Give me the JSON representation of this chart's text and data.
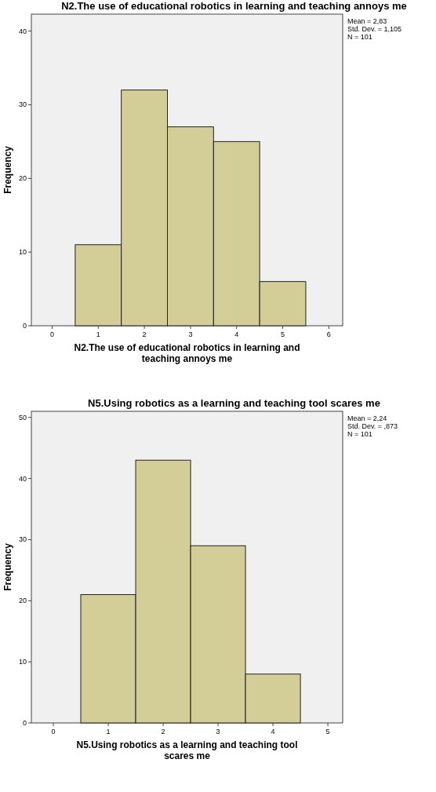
{
  "chart_data": [
    {
      "type": "histogram",
      "title": "N2.The use of educational robotics in learning and teaching annoys me",
      "xlabel": "N2.The use of educational robotics in learning and teaching annoys me",
      "ylabel": "Frequency",
      "bins": [
        0.5,
        1.5,
        2.5,
        3.5,
        4.5,
        5.5
      ],
      "values": [
        11,
        32,
        27,
        25,
        6
      ],
      "color": "#d3ce97",
      "xlim": [
        -0.45,
        6.3
      ],
      "xticks": [
        0,
        1,
        2,
        3,
        4,
        5,
        6
      ],
      "ylim": [
        0,
        42.3
      ],
      "yticks": [
        0,
        10,
        20,
        30,
        40
      ],
      "annotations": [
        "Mean = 2,83",
        "Std. Dev. = 1,105",
        "N = 101"
      ]
    },
    {
      "type": "histogram",
      "title": "N5.Using robotics as a learning and teaching tool scares me",
      "xlabel": "N5.Using robotics as a learning and teaching tool scares me",
      "ylabel": "Frequency",
      "bins": [
        0.5,
        1.5,
        2.5,
        3.5,
        4.5
      ],
      "values": [
        21,
        43,
        29,
        8
      ],
      "color": "#d3ce97",
      "xlim": [
        -0.4,
        5.27
      ],
      "xticks": [
        0,
        1,
        2,
        3,
        4,
        5
      ],
      "ylim": [
        0,
        51
      ],
      "yticks": [
        0,
        10,
        20,
        30,
        40,
        50
      ],
      "annotations": [
        "Mean = 2,24",
        "Std. Dev. = ,873",
        "N = 101"
      ]
    }
  ]
}
